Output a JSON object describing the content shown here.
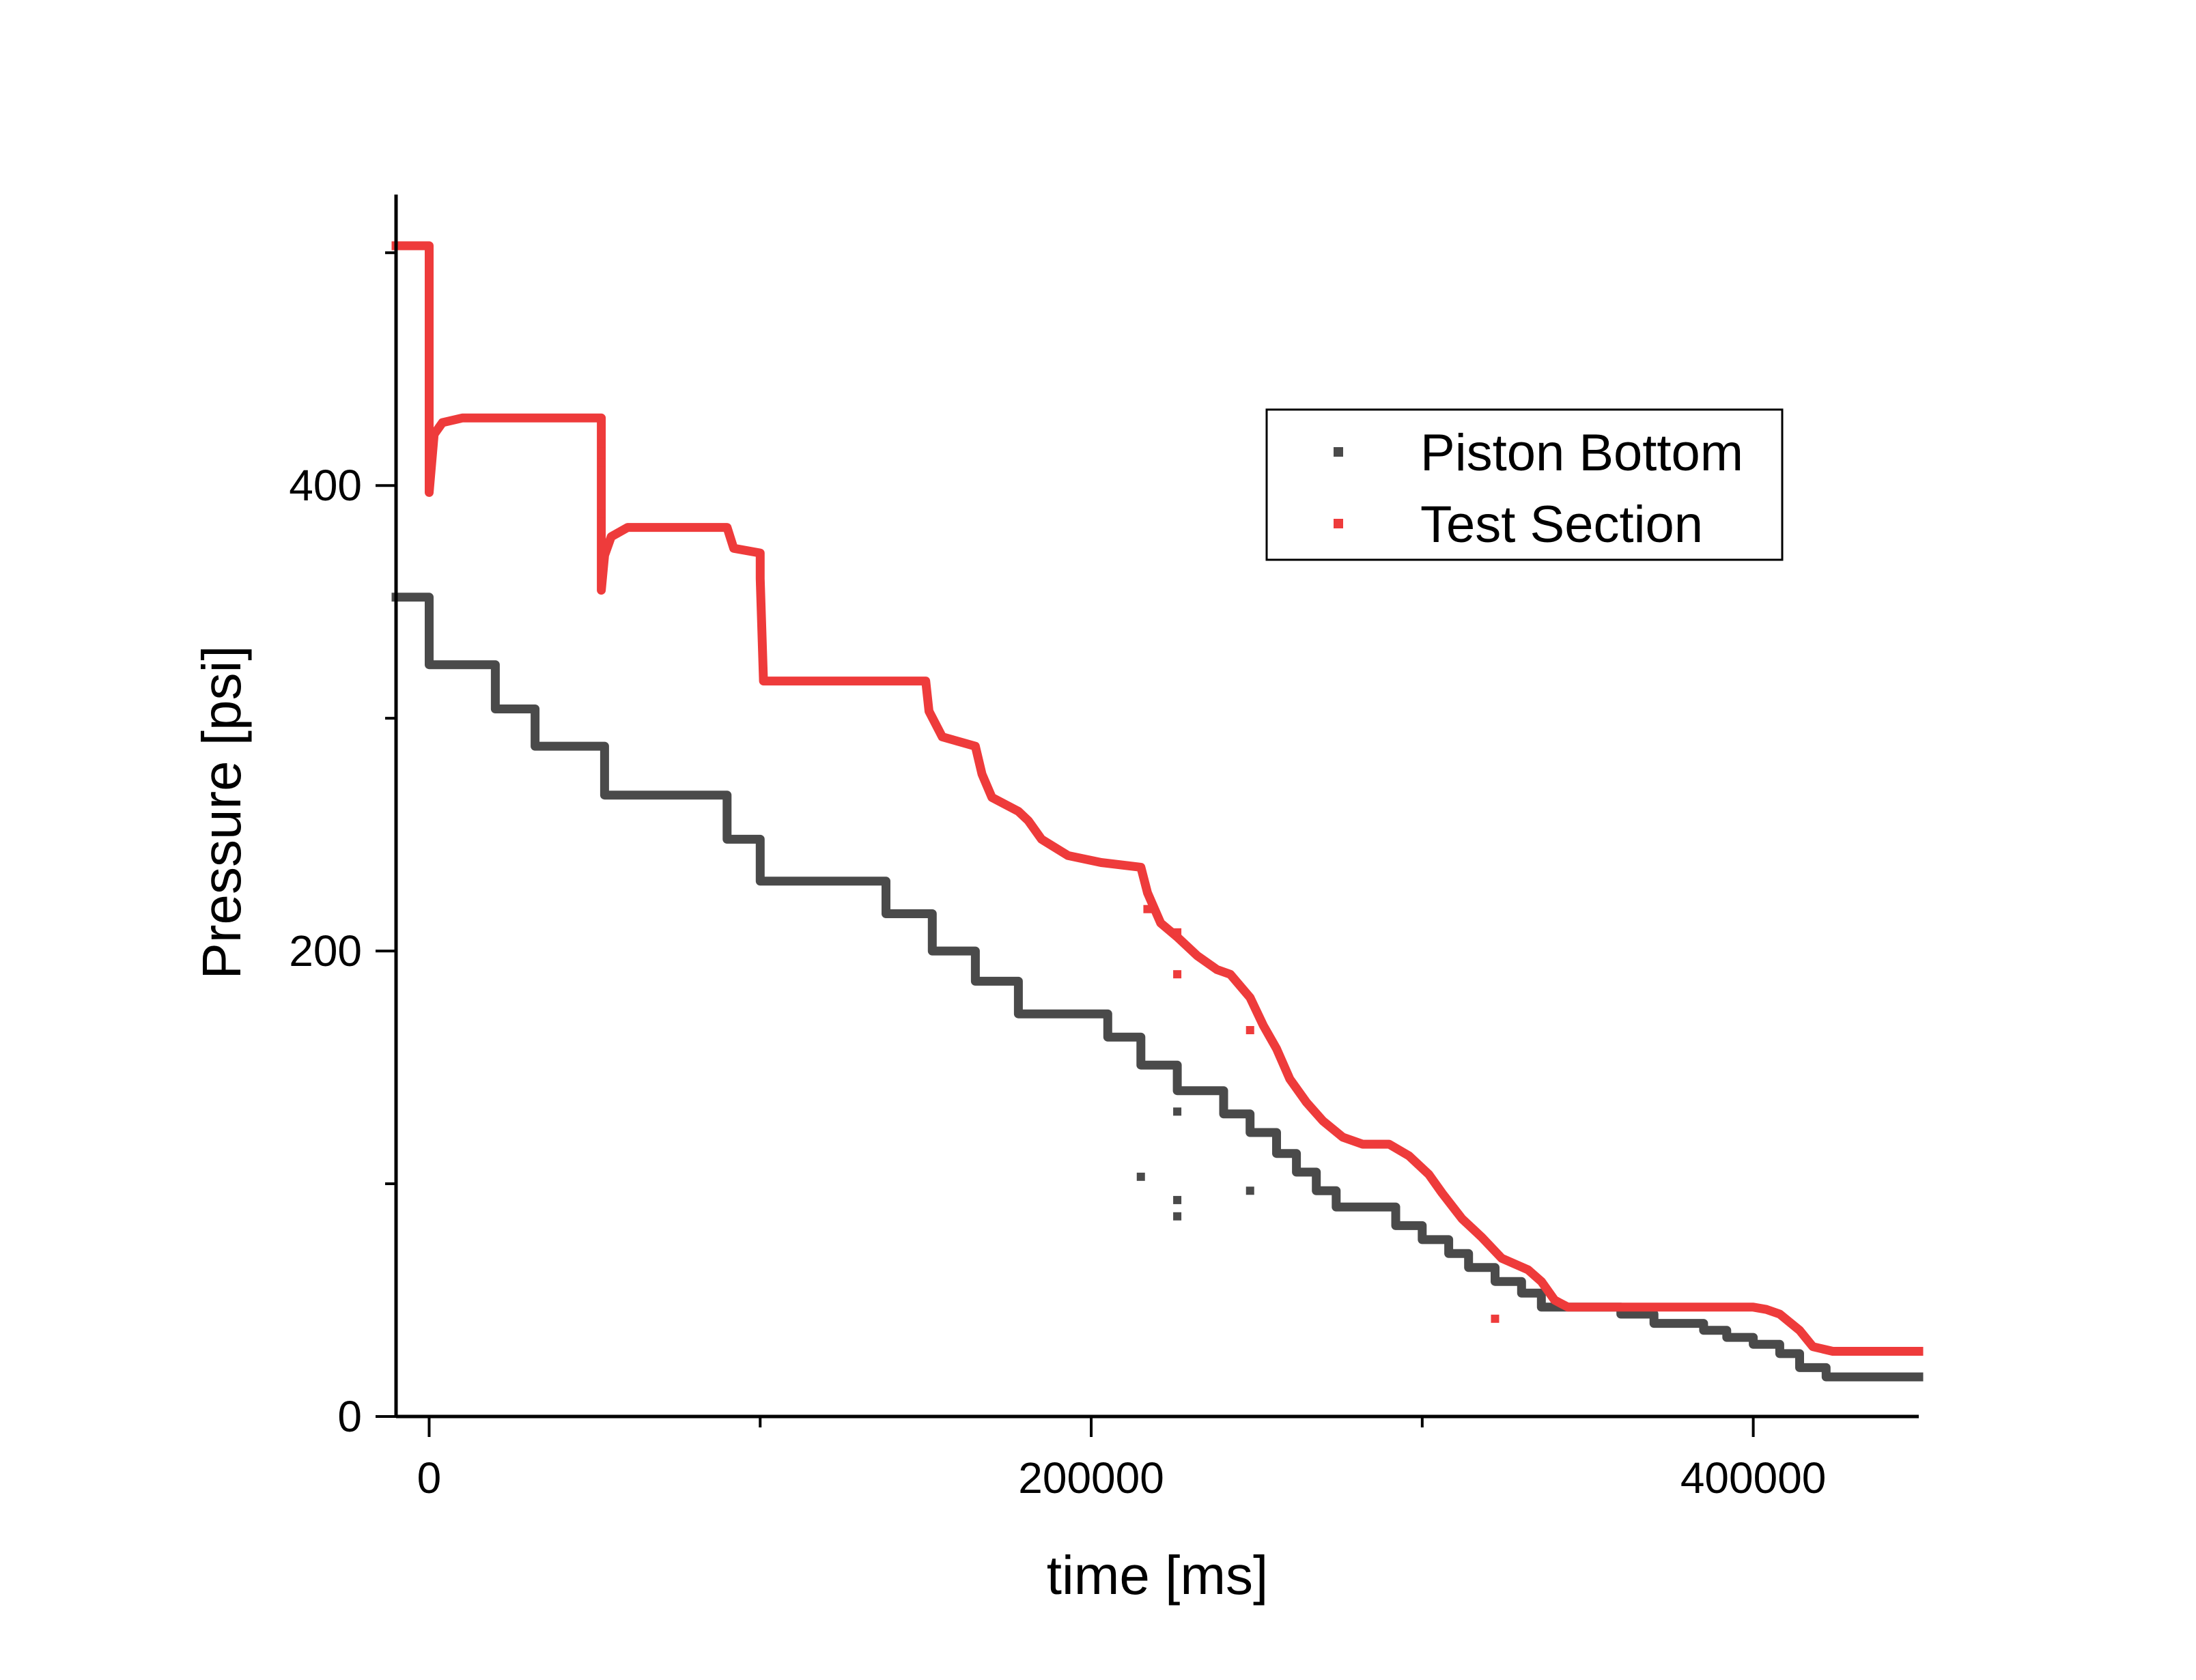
{
  "chart_data": {
    "type": "scatter",
    "xlabel": "time [ms]",
    "ylabel": "Pressure [psi]",
    "xlim": [
      -10000,
      450000
    ],
    "ylim": [
      0,
      525
    ],
    "xticks_major": [
      0,
      200000,
      400000
    ],
    "xticks_minor": [
      100000,
      300000
    ],
    "yticks_major": [
      0,
      200,
      400
    ],
    "yticks_minor": [
      100,
      300,
      500
    ],
    "grid": false,
    "legend_position": "top-right",
    "series": [
      {
        "name": "Piston Bottom",
        "color": "#4a4a4a",
        "step": true,
        "points": [
          [
            -10000,
            352
          ],
          [
            0,
            352
          ],
          [
            0,
            323
          ],
          [
            20000,
            323
          ],
          [
            20000,
            304
          ],
          [
            32000,
            304
          ],
          [
            32000,
            288
          ],
          [
            53000,
            288
          ],
          [
            53000,
            267
          ],
          [
            90000,
            267
          ],
          [
            90000,
            248
          ],
          [
            100000,
            248
          ],
          [
            100000,
            230
          ],
          [
            138000,
            230
          ],
          [
            138000,
            216
          ],
          [
            152000,
            216
          ],
          [
            152000,
            200
          ],
          [
            165000,
            200
          ],
          [
            165000,
            187
          ],
          [
            178000,
            187
          ],
          [
            178000,
            173
          ],
          [
            205000,
            173
          ],
          [
            205000,
            163
          ],
          [
            215000,
            163
          ],
          [
            215000,
            151
          ],
          [
            226000,
            151
          ],
          [
            226000,
            140
          ],
          [
            240000,
            140
          ],
          [
            240000,
            130
          ],
          [
            248000,
            130
          ],
          [
            248000,
            122
          ],
          [
            256000,
            122
          ],
          [
            256000,
            113
          ],
          [
            262000,
            113
          ],
          [
            262000,
            105
          ],
          [
            268000,
            105
          ],
          [
            268000,
            97
          ],
          [
            274000,
            97
          ],
          [
            274000,
            90
          ],
          [
            292000,
            90
          ],
          [
            292000,
            82
          ],
          [
            300000,
            82
          ],
          [
            300000,
            76
          ],
          [
            308000,
            76
          ],
          [
            308000,
            70
          ],
          [
            314000,
            70
          ],
          [
            314000,
            64
          ],
          [
            322000,
            64
          ],
          [
            322000,
            58
          ],
          [
            330000,
            58
          ],
          [
            330000,
            53
          ],
          [
            336000,
            53
          ],
          [
            336000,
            47
          ],
          [
            360000,
            47
          ],
          [
            360000,
            44
          ],
          [
            370000,
            44
          ],
          [
            370000,
            40
          ],
          [
            385000,
            40
          ],
          [
            385000,
            37
          ],
          [
            392000,
            37
          ],
          [
            392000,
            34
          ],
          [
            400000,
            34
          ],
          [
            400000,
            31
          ],
          [
            408000,
            31
          ],
          [
            408000,
            27
          ],
          [
            414000,
            27
          ],
          [
            414000,
            21
          ],
          [
            422000,
            21
          ],
          [
            422000,
            17
          ],
          [
            450000,
            17
          ]
        ],
        "outliers": [
          [
            215000,
            103
          ],
          [
            226000,
            93
          ],
          [
            226000,
            86
          ],
          [
            248000,
            97
          ],
          [
            226000,
            131
          ]
        ]
      },
      {
        "name": "Test Section",
        "color": "#ee3b3b",
        "step": false,
        "points": [
          [
            -10000,
            503
          ],
          [
            0,
            503
          ],
          [
            0,
            455
          ],
          [
            0,
            397
          ],
          [
            1500,
            422
          ],
          [
            4000,
            427
          ],
          [
            10000,
            429
          ],
          [
            52000,
            429
          ],
          [
            52000,
            355
          ],
          [
            53000,
            370
          ],
          [
            55000,
            378
          ],
          [
            60000,
            382
          ],
          [
            90000,
            382
          ],
          [
            92000,
            373
          ],
          [
            100000,
            371
          ],
          [
            100000,
            360
          ],
          [
            101000,
            316
          ],
          [
            150000,
            316
          ],
          [
            151000,
            303
          ],
          [
            155000,
            292
          ],
          [
            165000,
            288
          ],
          [
            167000,
            276
          ],
          [
            170000,
            266
          ],
          [
            178000,
            260
          ],
          [
            181000,
            256
          ],
          [
            185000,
            248
          ],
          [
            193000,
            241
          ],
          [
            203000,
            238
          ],
          [
            215000,
            236
          ],
          [
            217000,
            225
          ],
          [
            221000,
            212
          ],
          [
            226000,
            206
          ],
          [
            232000,
            198
          ],
          [
            238000,
            192
          ],
          [
            242000,
            190
          ],
          [
            248000,
            180
          ],
          [
            252000,
            168
          ],
          [
            256000,
            158
          ],
          [
            260000,
            145
          ],
          [
            265000,
            135
          ],
          [
            270000,
            127
          ],
          [
            276000,
            120
          ],
          [
            282000,
            117
          ],
          [
            290000,
            117
          ],
          [
            296000,
            112
          ],
          [
            302000,
            104
          ],
          [
            306000,
            96
          ],
          [
            312000,
            85
          ],
          [
            318000,
            77
          ],
          [
            324000,
            68
          ],
          [
            332000,
            63
          ],
          [
            336000,
            58
          ],
          [
            340000,
            50
          ],
          [
            344000,
            47
          ],
          [
            400000,
            47
          ],
          [
            404000,
            46
          ],
          [
            408000,
            44
          ],
          [
            414000,
            37
          ],
          [
            418000,
            30
          ],
          [
            424000,
            28
          ],
          [
            450000,
            28
          ]
        ],
        "outliers": [
          [
            52000,
            418
          ],
          [
            52000,
            410
          ],
          [
            52000,
            388
          ],
          [
            217000,
            218
          ],
          [
            226000,
            208
          ],
          [
            226000,
            190
          ],
          [
            248000,
            166
          ],
          [
            322000,
            42
          ]
        ]
      }
    ]
  }
}
